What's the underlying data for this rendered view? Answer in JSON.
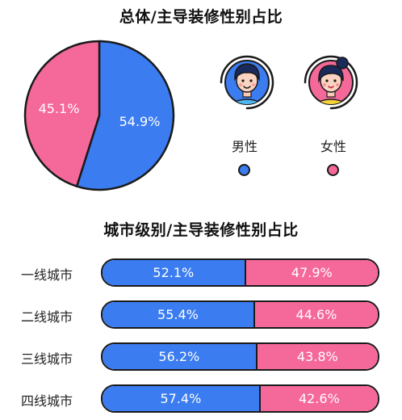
{
  "colors": {
    "male": "#3b7cf0",
    "female": "#f5689a",
    "outline": "#1a1a1a"
  },
  "legend": {
    "male": "男性",
    "female": "女性",
    "male_icon": "male-avatar-icon",
    "female_icon": "female-avatar-icon"
  },
  "chart_data": [
    {
      "type": "pie",
      "title": "总体/主导装修性别占比",
      "slices": [
        {
          "name": "男性",
          "value": 54.9,
          "label": "54.9%"
        },
        {
          "name": "女性",
          "value": 45.1,
          "label": "45.1%"
        }
      ]
    },
    {
      "type": "bar",
      "orientation": "horizontal",
      "stacked": true,
      "title": "城市级别/主导装修性别占比",
      "categories": [
        "一线城市",
        "二线城市",
        "三线城市",
        "四线城市"
      ],
      "series": [
        {
          "name": "男性",
          "values": [
            52.1,
            55.4,
            56.2,
            57.4
          ],
          "labels": [
            "52.1%",
            "55.4%",
            "56.2%",
            "57.4%"
          ]
        },
        {
          "name": "女性",
          "values": [
            47.9,
            44.6,
            43.8,
            42.6
          ],
          "labels": [
            "47.9%",
            "44.6%",
            "43.8%",
            "42.6%"
          ]
        }
      ]
    }
  ]
}
